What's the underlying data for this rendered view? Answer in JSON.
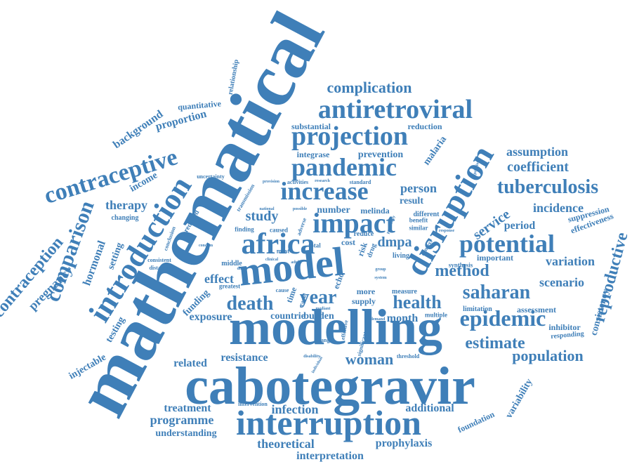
{
  "colors": {
    "word": "#3f7fb8",
    "background": "#ffffff"
  },
  "words": {
    "mathematical": "mathematical",
    "modelling": "modelling",
    "cabotegravir": "cabotegravir",
    "model": "model",
    "interruption": "interruption",
    "disruption": "disruption",
    "introduction": "introduction",
    "africa": "africa",
    "pandemic": "pandemic",
    "increase": "increase",
    "antiretroviral": "antiretroviral",
    "projection": "projection",
    "impact": "impact",
    "potential": "potential",
    "epidemic": "epidemic",
    "contraceptive": "contraceptive",
    "comparison": "comparison",
    "contraception": "contraception",
    "saharan": "saharan",
    "tuberculosis": "tuberculosis",
    "death": "death",
    "year": "year",
    "health": "health",
    "method": "method",
    "reproductive": "reproductive",
    "estimate": "estimate",
    "woman": "woman",
    "population": "population",
    "complication": "complication",
    "coefficient": "coefficient",
    "assumption": "assumption",
    "service": "service",
    "incidence": "incidence",
    "therapy": "therapy",
    "pregnancy": "pregnancy",
    "hormonal": "hormonal",
    "setting": "setting",
    "background": "background",
    "proportion": "proportion",
    "income": "income",
    "quantitative": "quantitative",
    "relationship": "relationship",
    "malaria": "malaria",
    "person": "person",
    "result": "result",
    "dmpa": "dmpa",
    "study": "study",
    "effect": "effect",
    "scenario": "scenario",
    "variation": "variation",
    "period": "period",
    "consistency": "consistency",
    "effectiveness": "effectiveness",
    "suppression": "suppression",
    "exposure": "exposure",
    "countrie": "countrie",
    "burden": "burden",
    "month": "month",
    "resistance": "resistance",
    "related": "related",
    "treatment": "treatment",
    "programme": "programme",
    "understanding": "understanding",
    "infection": "infection",
    "theoretical": "theoretical",
    "interpretation": "interpretation",
    "prophylaxis": "prophylaxis",
    "additional": "additional",
    "foundation": "foundation",
    "variability": "variability",
    "injectable": "injectable",
    "testing": "testing",
    "funding": "funding",
    "important": "important",
    "assessment": "assessment",
    "inhibitor": "inhibitor",
    "responding": "responding",
    "limitation": "limitation",
    "supply": "supply",
    "number": "number",
    "melinda": "melinda",
    "prevention": "prevention",
    "integrase": "integrase",
    "substantial": "substantial",
    "reduction": "reduction",
    "uncertainty": "uncertainty",
    "activities": "activities",
    "standard": "standard",
    "changing": "changing",
    "predicted": "predicted",
    "transmission": "transmission",
    "conclusion": "conclusion",
    "consistent": "consistent",
    "distancing": "distancing",
    "middle": "middle",
    "greatest": "greatest",
    "caused": "caused",
    "finding": "finding",
    "different": "different",
    "similar": "similar",
    "benefit": "benefit",
    "synthesis": "synthesis",
    "cost": "cost",
    "total": "total",
    "risk": "risk",
    "drug": "drug",
    "reduce": "reduce",
    "living": "living",
    "most": "most",
    "more": "more",
    "measure": "measure",
    "system": "system",
    "change": "change",
    "multiple": "multiple",
    "threshold": "threshold",
    "disability": "disability",
    "individual": "individual",
    "effective": "effective",
    "significant": "significant",
    "intervention": "intervention",
    "echo": "echo",
    "time": "time",
    "mediant": "mediant",
    "response": "response",
    "context": "context",
    "acquisition": "acquisition",
    "group": "group",
    "condom": "condom",
    "provision": "provision",
    "research": "research",
    "possible": "possible",
    "national": "national",
    "adverse": "adverse",
    "cause": "cause",
    "adult": "adult",
    "clinical": "clinical",
    "direct": "direct",
    "rapid": "rapid",
    "potentially": "potentially",
    "demand": "demand"
  }
}
